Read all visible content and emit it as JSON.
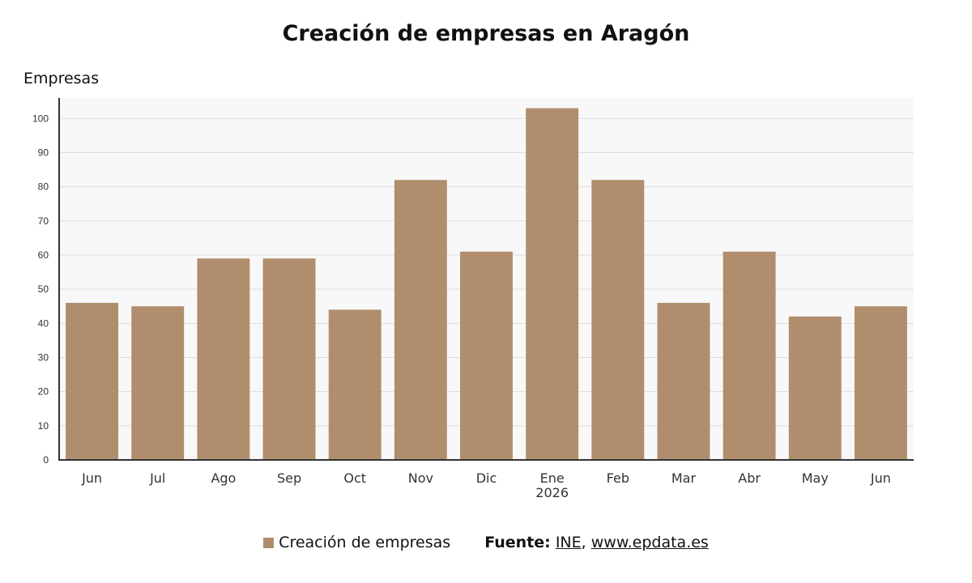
{
  "chart_data": {
    "type": "bar",
    "title": "Creación de empresas en Aragón",
    "ylabel": "Empresas",
    "xlabel": "",
    "categories": [
      "Jun",
      "Jul",
      "Ago",
      "Sep",
      "Oct",
      "Nov",
      "Dic",
      "Ene",
      "Feb",
      "Mar",
      "Abr",
      "May",
      "Jun"
    ],
    "year_labels": [
      {
        "index": 7,
        "label": "2026"
      }
    ],
    "series": [
      {
        "name": "Creación de empresas",
        "color": "#b08e6d",
        "values": [
          46,
          45,
          59,
          59,
          44,
          82,
          61,
          103,
          82,
          46,
          61,
          42,
          45
        ]
      }
    ],
    "ylim": [
      0,
      106
    ],
    "yticks": [
      0,
      10,
      20,
      30,
      40,
      50,
      60,
      70,
      80,
      90,
      100
    ],
    "grid": true,
    "legend": "bottom-center"
  },
  "source": {
    "prefix": "Fuente:",
    "links": [
      "INE",
      "www.epdata.es"
    ],
    "separator": ","
  },
  "colors": {
    "bar": "#b08e6d",
    "plot_background": "#f8f8f9",
    "grid": "#dddddd",
    "axis": "#333333"
  }
}
